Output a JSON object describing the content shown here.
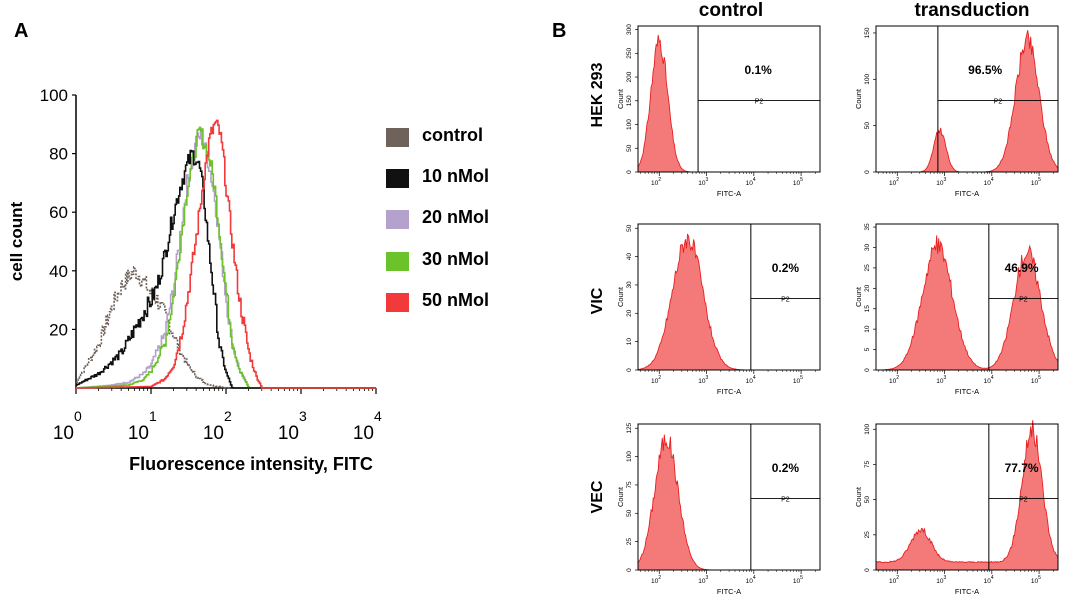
{
  "panel_a_label": "A",
  "panel_b_label": "B",
  "chart_data": [
    {
      "type": "line",
      "title": "",
      "xlabel": "Fluorescence intensity, FITC",
      "ylabel": "cell count",
      "xscale": "log",
      "xlim": [
        1,
        10000
      ],
      "ylim": [
        0,
        100
      ],
      "yticks": [
        20,
        40,
        60,
        80,
        100
      ],
      "xticks": [
        {
          "base": "10",
          "exp": "0"
        },
        {
          "base": "10",
          "exp": "1"
        },
        {
          "base": "10",
          "exp": "2"
        },
        {
          "base": "10",
          "exp": "3"
        },
        {
          "base": "10",
          "exp": "4"
        }
      ],
      "legend_position": "right",
      "series": [
        {
          "name": "control",
          "color": "#6f625a",
          "dashed": true,
          "x": [
            1,
            2,
            3,
            4,
            5,
            6,
            8,
            10,
            12,
            15,
            20,
            25,
            30,
            40,
            50,
            60,
            80,
            100,
            10000
          ],
          "y": [
            2,
            15,
            28,
            35,
            38,
            40,
            36,
            32,
            30,
            25,
            18,
            12,
            8,
            4,
            2,
            1,
            0.5,
            0,
            0
          ]
        },
        {
          "name": "10 nMol",
          "color": "#111111",
          "dashed": false,
          "x": [
            1,
            2,
            4,
            6,
            8,
            10,
            12,
            15,
            20,
            25,
            30,
            35,
            40,
            45,
            50,
            55,
            60,
            70,
            80,
            100,
            120,
            10000
          ],
          "y": [
            1,
            5,
            12,
            20,
            26,
            30,
            35,
            45,
            60,
            70,
            76,
            80,
            78,
            74,
            65,
            55,
            45,
            30,
            15,
            5,
            0,
            0
          ]
        },
        {
          "name": "20 nMol",
          "color": "#b4a2cc",
          "dashed": false,
          "x": [
            1,
            3,
            5,
            8,
            10,
            15,
            20,
            25,
            30,
            40,
            45,
            50,
            60,
            70,
            80,
            100,
            120,
            150,
            200,
            10000
          ],
          "y": [
            0,
            1,
            2,
            5,
            8,
            18,
            35,
            55,
            70,
            84,
            86,
            84,
            75,
            65,
            52,
            30,
            15,
            6,
            0,
            0
          ]
        },
        {
          "name": "30 nMol",
          "color": "#6cc22a",
          "dashed": false,
          "x": [
            1,
            5,
            8,
            10,
            15,
            20,
            25,
            30,
            40,
            45,
            50,
            60,
            70,
            80,
            100,
            120,
            150,
            200,
            10000
          ],
          "y": [
            0,
            1,
            3,
            6,
            15,
            32,
            52,
            68,
            84,
            88,
            84,
            78,
            68,
            55,
            32,
            16,
            6,
            0,
            0
          ]
        },
        {
          "name": "50 nMol",
          "color": "#f23a3a",
          "dashed": false,
          "x": [
            1,
            10,
            15,
            20,
            25,
            30,
            40,
            50,
            60,
            70,
            80,
            90,
            100,
            120,
            150,
            200,
            250,
            300,
            10000
          ],
          "y": [
            0,
            0.5,
            3,
            8,
            18,
            30,
            52,
            72,
            85,
            90,
            88,
            80,
            68,
            50,
            30,
            12,
            4,
            0,
            0
          ]
        }
      ]
    },
    {
      "type": "area",
      "column_titles": [
        "control",
        "transduction"
      ],
      "row_titles": [
        "HEK 293",
        "VIC",
        "VEC"
      ],
      "xlabel": "FITC-A",
      "ylabel": "Count",
      "gate_label": "P2",
      "plots": [
        {
          "row": "HEK 293",
          "column": "control",
          "percent": "0.1%",
          "yticks": [
            "0",
            "50",
            "100",
            "150",
            "200",
            "250",
            "300"
          ],
          "peak_log": 2.0,
          "width": 0.25
        },
        {
          "row": "HEK 293",
          "column": "transduction",
          "percent": "96.5%",
          "yticks": [
            "0",
            "50",
            "100",
            "150"
          ],
          "peak_log": 4.75,
          "width": 0.35
        },
        {
          "row": "VIC",
          "column": "control",
          "percent": "0.2%",
          "yticks": [
            "0",
            "10",
            "20",
            "30",
            "40",
            "50"
          ],
          "peak_log": 2.6,
          "width": 0.45
        },
        {
          "row": "VIC",
          "column": "transduction",
          "percent": "46.9%",
          "yticks": [
            "0",
            "5",
            "10",
            "15",
            "20",
            "25",
            "30",
            "35"
          ],
          "peak_log": 2.8,
          "width": 0.5
        },
        {
          "row": "VEC",
          "column": "control",
          "percent": "0.2%",
          "yticks": [
            "0",
            "25",
            "50",
            "75",
            "100",
            "125"
          ],
          "peak_log": 2.15,
          "width": 0.35
        },
        {
          "row": "VEC",
          "column": "transduction",
          "percent": "77.7%",
          "yticks": [
            "0",
            "25",
            "50",
            "75",
            "100"
          ],
          "peak_log": 4.85,
          "width": 0.3
        }
      ],
      "x_ticks": [
        {
          "base": "10",
          "exp": "2"
        },
        {
          "base": "10",
          "exp": "3"
        },
        {
          "base": "10",
          "exp": "4"
        },
        {
          "base": "10",
          "exp": "5"
        }
      ]
    }
  ]
}
